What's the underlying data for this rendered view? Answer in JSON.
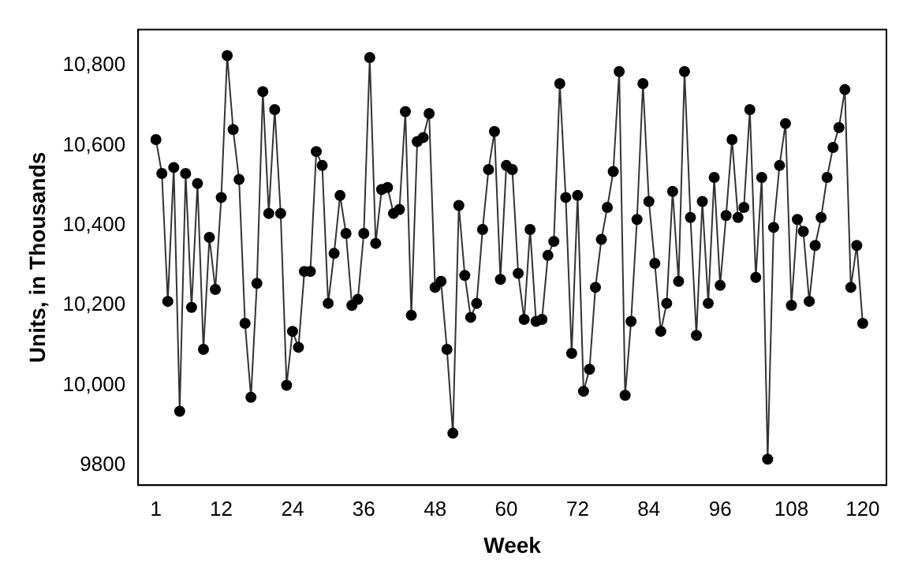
{
  "chart_data": {
    "type": "line",
    "xlabel": "Week",
    "ylabel": "Units, in Thousands",
    "x": [
      1,
      2,
      3,
      4,
      5,
      6,
      7,
      8,
      9,
      10,
      11,
      12,
      13,
      14,
      15,
      16,
      17,
      18,
      19,
      20,
      21,
      22,
      23,
      24,
      25,
      26,
      27,
      28,
      29,
      30,
      31,
      32,
      33,
      34,
      35,
      36,
      37,
      38,
      39,
      40,
      41,
      42,
      43,
      44,
      45,
      46,
      47,
      48,
      49,
      50,
      51,
      52,
      53,
      54,
      55,
      56,
      57,
      58,
      59,
      60,
      61,
      62,
      63,
      64,
      65,
      66,
      67,
      68,
      69,
      70,
      71,
      72,
      73,
      74,
      75,
      76,
      77,
      78,
      79,
      80,
      81,
      82,
      83,
      84,
      85,
      86,
      87,
      88,
      89,
      90,
      91,
      92,
      93,
      94,
      95,
      96,
      97,
      98,
      99,
      100,
      101,
      102,
      103,
      104,
      105,
      106,
      107,
      108,
      109,
      110,
      111,
      112,
      113,
      114,
      115,
      116,
      117,
      118,
      119,
      120
    ],
    "series": [
      {
        "color": "#000000",
        "values": [
          10615,
          10530,
          10210,
          10545,
          9935,
          10530,
          10195,
          10505,
          10090,
          10370,
          10240,
          10470,
          10825,
          10640,
          10515,
          10155,
          9970,
          10255,
          10735,
          10430,
          10690,
          10430,
          10000,
          10135,
          10095,
          10285,
          10285,
          10585,
          10550,
          10205,
          10330,
          10475,
          10380,
          10200,
          10215,
          10380,
          10820,
          10355,
          10490,
          10495,
          10430,
          10440,
          10685,
          10175,
          10610,
          10620,
          10680,
          10245,
          10260,
          10090,
          9880,
          10450,
          10275,
          10170,
          10205,
          10390,
          10540,
          10635,
          10265,
          10550,
          10540,
          10280,
          10165,
          10390,
          10160,
          10165,
          10325,
          10360,
          10755,
          10470,
          10080,
          10475,
          9985,
          10040,
          10245,
          10365,
          10445,
          10535,
          10785,
          9975,
          10160,
          10415,
          10755,
          10460,
          10305,
          10135,
          10205,
          10485,
          10260,
          10785,
          10420,
          10125,
          10460,
          10205,
          10520,
          10250,
          10425,
          10615,
          10420,
          10445,
          10690,
          10270,
          10520,
          9815,
          10395,
          10550,
          10655,
          10200,
          10415,
          10385,
          10210,
          10350,
          10420,
          10520,
          10595,
          10645,
          10740,
          10245,
          10350,
          10155
        ]
      }
    ],
    "xlim": [
      -2,
      124
    ],
    "xticks": [
      1,
      12,
      24,
      36,
      48,
      60,
      72,
      84,
      96,
      108,
      120
    ],
    "ylim": [
      9750,
      10890
    ],
    "yticks": [
      9800,
      {
        "value": 10000,
        "label": "10,000"
      },
      {
        "value": 10200,
        "label": "10,200"
      },
      {
        "value": 10400,
        "label": "10,400"
      },
      {
        "value": 10600,
        "label": "10,600"
      },
      {
        "value": 10800,
        "label": "10,800"
      }
    ],
    "grid": false,
    "legend": false,
    "marker": "circle",
    "line_style": "solid"
  }
}
